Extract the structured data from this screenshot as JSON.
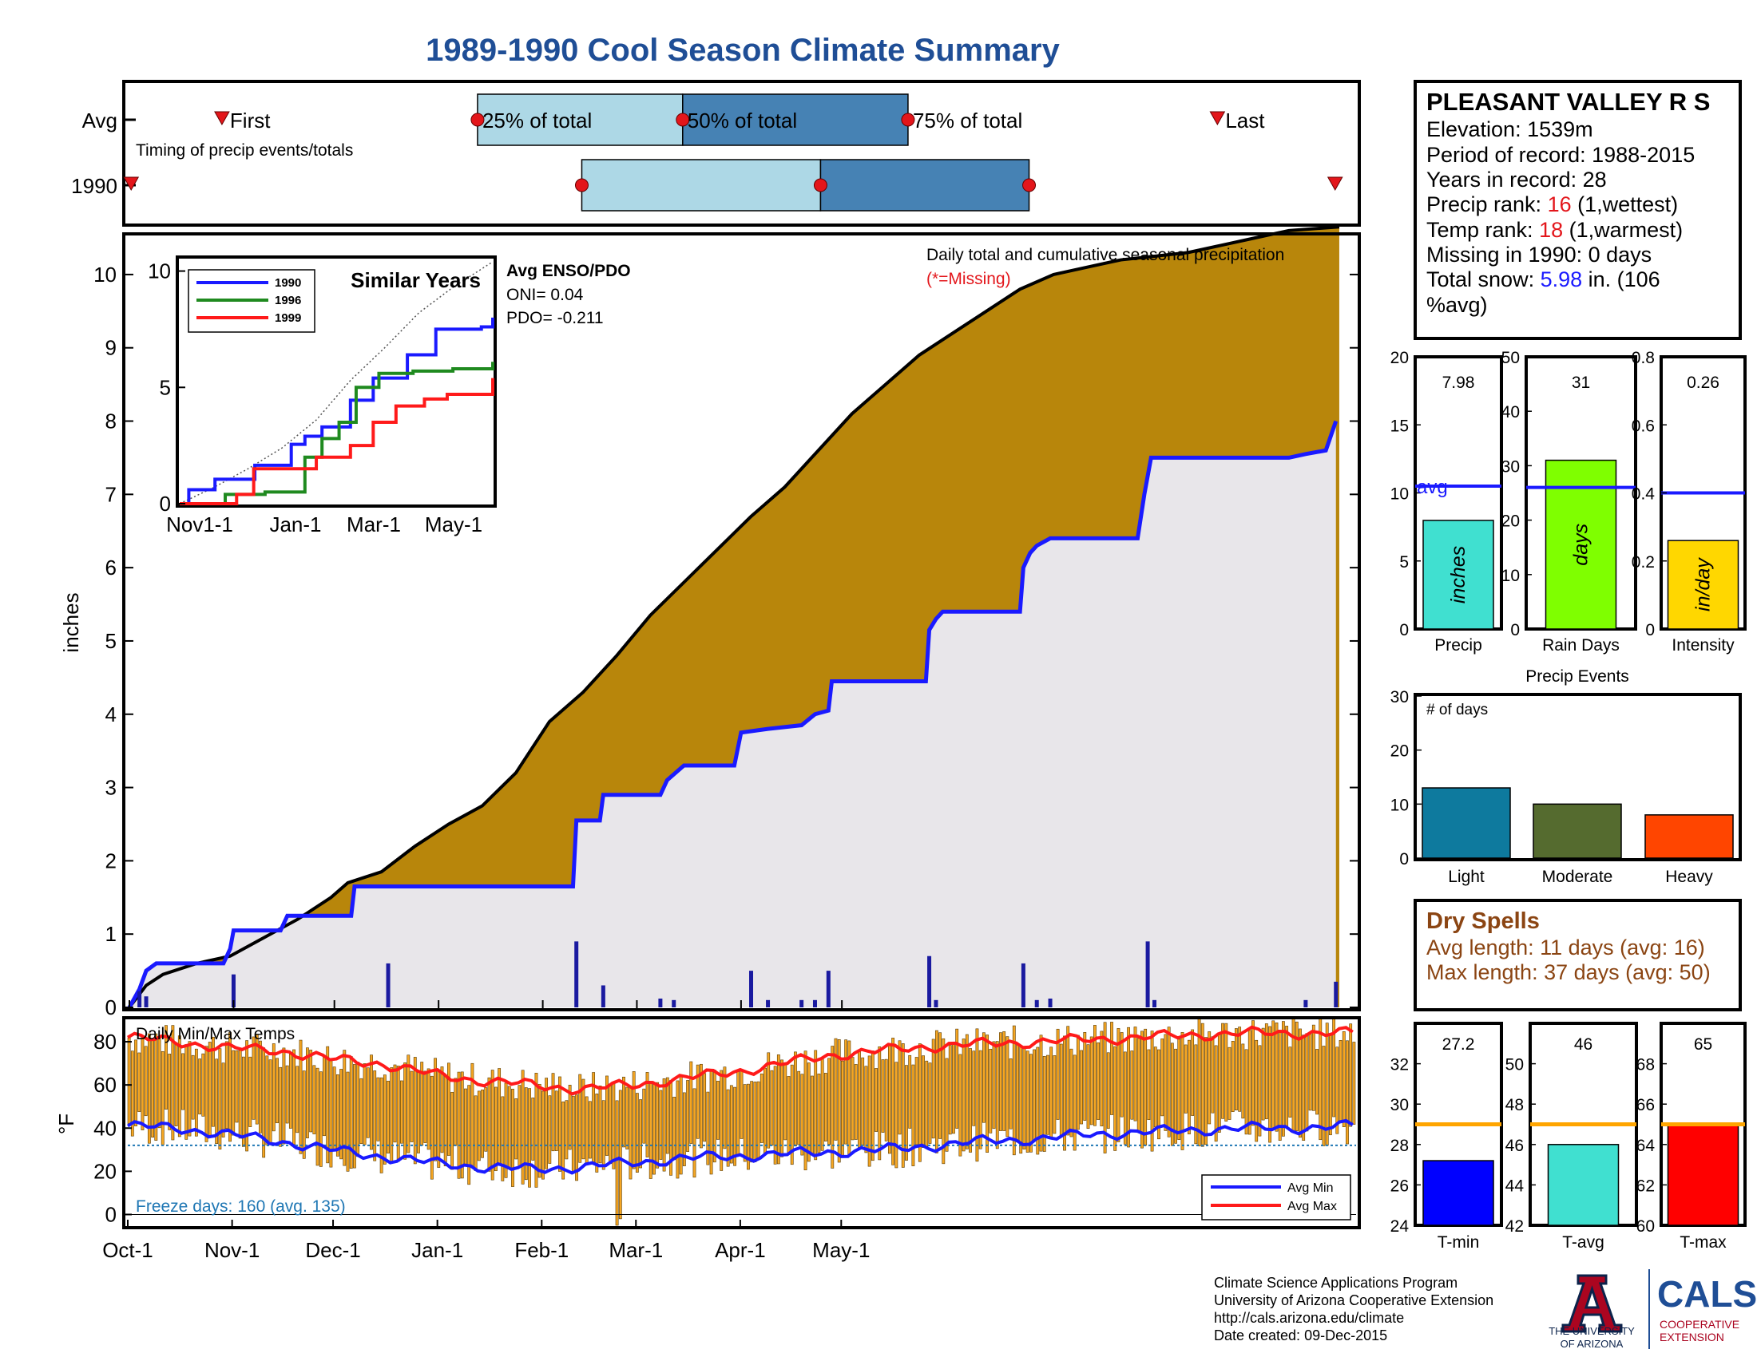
{
  "page_title": "1989-1990 Cool Season Climate Summary",
  "colors": {
    "title": "#1f4e96",
    "avg_cum_fill": "#b8860b",
    "deficit_fill": "#2e8b2e",
    "season_cum_fill": "#e8e6ea",
    "season_line": "#1a1aff",
    "daily_bar": "#1a1aa0",
    "temp_bar": "#f5a623",
    "avg_max": "#ff1a1a",
    "avg_min": "#1a1aff",
    "highlight_red": "#e3161b",
    "highlight_blue": "#1a1aff",
    "dry_spells": "#8b4513",
    "timing_light": "#add8e6",
    "timing_dark": "#4682b4"
  },
  "timing": {
    "row_labels": [
      "Avg",
      "1990"
    ],
    "first_label": "First",
    "last_label": "Last",
    "pct25_label": "25% of total",
    "pct50_label": "50% of total",
    "pct75_label": "75% of total",
    "caption": "Timing of precip events/totals",
    "avg": {
      "first": 28,
      "p25": 104,
      "p50": 165,
      "p75": 232,
      "last": 324
    },
    "season": {
      "first": 1,
      "p25": 135,
      "p50": 206,
      "p75": 268,
      "last": 359
    },
    "days_total": 365
  },
  "main_chart": {
    "ylabel": "inches",
    "annotation": "Daily total and cumulative seasonal precipitation",
    "missing_note": "(*=Missing)",
    "enso_title": "Avg ENSO/PDO",
    "oni": "ONI= 0.04",
    "pdo": "PDO= -0.211",
    "yticks": [
      0,
      1,
      2,
      3,
      4,
      5,
      6,
      7,
      8,
      9,
      10
    ],
    "ylim": [
      0,
      10.5
    ],
    "xticks": [
      "Oct-1",
      "Nov-1",
      "Dec-1",
      "Jan-1",
      "Feb-1",
      "Mar-1",
      "Apr-1",
      "May-1"
    ],
    "xtick_days": [
      0,
      31,
      61,
      92,
      123,
      151,
      182,
      212
    ],
    "avg_cumulative": [
      [
        0,
        0
      ],
      [
        5,
        0.3
      ],
      [
        10,
        0.45
      ],
      [
        20,
        0.6
      ],
      [
        30,
        0.7
      ],
      [
        40,
        0.95
      ],
      [
        50,
        1.2
      ],
      [
        60,
        1.5
      ],
      [
        65,
        1.7
      ],
      [
        75,
        1.85
      ],
      [
        85,
        2.2
      ],
      [
        95,
        2.5
      ],
      [
        105,
        2.75
      ],
      [
        115,
        3.2
      ],
      [
        125,
        3.9
      ],
      [
        135,
        4.3
      ],
      [
        145,
        4.8
      ],
      [
        155,
        5.35
      ],
      [
        165,
        5.8
      ],
      [
        175,
        6.25
      ],
      [
        185,
        6.7
      ],
      [
        195,
        7.1
      ],
      [
        205,
        7.6
      ],
      [
        215,
        8.1
      ],
      [
        225,
        8.5
      ],
      [
        235,
        8.9
      ],
      [
        245,
        9.2
      ],
      [
        255,
        9.5
      ],
      [
        265,
        9.8
      ],
      [
        275,
        10.0
      ],
      [
        285,
        10.1
      ],
      [
        295,
        10.2
      ],
      [
        305,
        10.25
      ],
      [
        315,
        10.3
      ],
      [
        325,
        10.4
      ],
      [
        335,
        10.5
      ],
      [
        345,
        10.6
      ],
      [
        360,
        10.65
      ]
    ],
    "season_cumulative": [
      [
        0,
        0
      ],
      [
        3,
        0.25
      ],
      [
        5,
        0.5
      ],
      [
        8,
        0.6
      ],
      [
        20,
        0.6
      ],
      [
        28,
        0.6
      ],
      [
        30,
        0.8
      ],
      [
        31,
        1.05
      ],
      [
        45,
        1.05
      ],
      [
        47,
        1.25
      ],
      [
        66,
        1.25
      ],
      [
        67,
        1.65
      ],
      [
        132,
        1.65
      ],
      [
        133,
        2.55
      ],
      [
        140,
        2.55
      ],
      [
        141,
        2.9
      ],
      [
        158,
        2.9
      ],
      [
        160,
        3.1
      ],
      [
        165,
        3.3
      ],
      [
        180,
        3.3
      ],
      [
        182,
        3.75
      ],
      [
        190,
        3.8
      ],
      [
        200,
        3.85
      ],
      [
        204,
        4.0
      ],
      [
        208,
        4.05
      ],
      [
        209,
        4.45
      ],
      [
        237,
        4.45
      ],
      [
        238,
        5.15
      ],
      [
        240,
        5.3
      ],
      [
        242,
        5.4
      ],
      [
        265,
        5.4
      ],
      [
        266,
        6.0
      ],
      [
        268,
        6.2
      ],
      [
        270,
        6.3
      ],
      [
        274,
        6.4
      ],
      [
        300,
        6.4
      ],
      [
        302,
        7.0
      ],
      [
        304,
        7.5
      ],
      [
        345,
        7.5
      ],
      [
        350,
        7.55
      ],
      [
        356,
        7.6
      ],
      [
        359,
        8.0
      ]
    ],
    "daily_bars": [
      [
        3,
        0.22
      ],
      [
        5,
        0.15
      ],
      [
        31,
        0.45
      ],
      [
        77,
        0.6
      ],
      [
        133,
        0.9
      ],
      [
        141,
        0.3
      ],
      [
        158,
        0.12
      ],
      [
        162,
        0.1
      ],
      [
        185,
        0.5
      ],
      [
        190,
        0.1
      ],
      [
        200,
        0.1
      ],
      [
        204,
        0.1
      ],
      [
        208,
        0.5
      ],
      [
        238,
        0.7
      ],
      [
        240,
        0.1
      ],
      [
        266,
        0.6
      ],
      [
        270,
        0.1
      ],
      [
        274,
        0.12
      ],
      [
        303,
        0.9
      ],
      [
        305,
        0.1
      ],
      [
        350,
        0.1
      ],
      [
        359,
        0.35
      ]
    ]
  },
  "inset": {
    "title": "Similar Years",
    "yticks": [
      0,
      5,
      10
    ],
    "ylim": [
      0,
      10.5
    ],
    "xticks": [
      "Nov1-1",
      "Jan-1",
      "Mar-1",
      "May-1"
    ],
    "xtick_days": [
      31,
      92,
      151,
      212
    ],
    "series": [
      {
        "name": "1990",
        "color": "#1a1aff",
        "points": [
          [
            0,
            0
          ],
          [
            8,
            0.6
          ],
          [
            31,
            1.05
          ],
          [
            66,
            1.65
          ],
          [
            92,
            1.65
          ],
          [
            98,
            2.55
          ],
          [
            110,
            2.9
          ],
          [
            125,
            3.3
          ],
          [
            150,
            4.45
          ],
          [
            170,
            5.4
          ],
          [
            190,
            5.4
          ],
          [
            200,
            6.4
          ],
          [
            225,
            7.5
          ],
          [
            265,
            7.6
          ],
          [
            275,
            8.0
          ]
        ]
      },
      {
        "name": "1996",
        "color": "#1f8a1f",
        "points": [
          [
            0,
            0
          ],
          [
            40,
            0.4
          ],
          [
            75,
            0.5
          ],
          [
            110,
            2.0
          ],
          [
            125,
            2.8
          ],
          [
            140,
            3.5
          ],
          [
            155,
            5.0
          ],
          [
            175,
            5.6
          ],
          [
            205,
            5.7
          ],
          [
            240,
            5.8
          ],
          [
            275,
            6.1
          ]
        ]
      },
      {
        "name": "1999",
        "color": "#ff1a1a",
        "points": [
          [
            0,
            0
          ],
          [
            50,
            0.4
          ],
          [
            65,
            1.5
          ],
          [
            105,
            1.5
          ],
          [
            120,
            2.0
          ],
          [
            150,
            2.5
          ],
          [
            170,
            3.5
          ],
          [
            190,
            4.2
          ],
          [
            215,
            4.5
          ],
          [
            235,
            4.7
          ],
          [
            275,
            5.4
          ]
        ]
      }
    ],
    "avg_dotted": [
      [
        0,
        0
      ],
      [
        30,
        0.7
      ],
      [
        60,
        1.5
      ],
      [
        90,
        2.4
      ],
      [
        120,
        3.6
      ],
      [
        150,
        5.3
      ],
      [
        180,
        6.7
      ],
      [
        210,
        8.2
      ],
      [
        240,
        9.3
      ],
      [
        275,
        10.4
      ]
    ]
  },
  "temp_chart": {
    "title": "Daily Min/Max Temps",
    "ylabel": "°F",
    "yticks": [
      0,
      20,
      40,
      60,
      80
    ],
    "ylim": [
      -5,
      90
    ],
    "freeze_label": "Freeze days: 160 (avg. 135)",
    "freeze_line": 32,
    "legend": [
      "Avg Min",
      "Avg Max"
    ],
    "avg_max": [
      [
        0,
        82
      ],
      [
        15,
        80
      ],
      [
        30,
        77
      ],
      [
        45,
        76
      ],
      [
        60,
        72
      ],
      [
        75,
        70
      ],
      [
        90,
        65
      ],
      [
        105,
        62
      ],
      [
        120,
        60
      ],
      [
        135,
        58
      ],
      [
        150,
        60
      ],
      [
        165,
        63
      ],
      [
        180,
        66
      ],
      [
        195,
        70
      ],
      [
        210,
        74
      ],
      [
        225,
        76
      ],
      [
        240,
        78
      ],
      [
        255,
        79
      ],
      [
        270,
        80
      ],
      [
        285,
        81
      ],
      [
        300,
        82
      ],
      [
        315,
        83
      ],
      [
        330,
        84
      ],
      [
        345,
        84
      ],
      [
        365,
        84
      ]
    ],
    "avg_min": [
      [
        0,
        41
      ],
      [
        15,
        40
      ],
      [
        30,
        37
      ],
      [
        45,
        34
      ],
      [
        60,
        30
      ],
      [
        75,
        27
      ],
      [
        90,
        24
      ],
      [
        105,
        22
      ],
      [
        120,
        21
      ],
      [
        135,
        22
      ],
      [
        150,
        24
      ],
      [
        165,
        26
      ],
      [
        180,
        27
      ],
      [
        195,
        28
      ],
      [
        210,
        29
      ],
      [
        225,
        30
      ],
      [
        240,
        32
      ],
      [
        255,
        34
      ],
      [
        270,
        35
      ],
      [
        285,
        37
      ],
      [
        300,
        38
      ],
      [
        315,
        39
      ],
      [
        330,
        40
      ],
      [
        345,
        40
      ],
      [
        365,
        41
      ]
    ]
  },
  "station": {
    "name": "PLEASANT VALLEY R S",
    "elevation": "Elevation: 1539m",
    "period": "Period of record: 1988-2015",
    "years": "Years in record: 28",
    "precip_rank_label": "Precip rank: ",
    "precip_rank_value": "16",
    "precip_rank_note": " (1,wettest)",
    "temp_rank_label": "Temp rank: ",
    "temp_rank_value": "18",
    "temp_rank_note": " (1,warmest)",
    "missing": "Missing in 1990: 0 days",
    "snow_label": "Total snow: ",
    "snow_value": "5.98",
    "snow_note": " in. (106",
    "snow_note2": "%avg)"
  },
  "small_bars": [
    {
      "label": "Precip",
      "unit": "inches",
      "value": 7.98,
      "value_text": "7.98",
      "avg": 10.5,
      "avg_text": "avg",
      "ymax": 20,
      "ticks": [
        0,
        5,
        10,
        15,
        20
      ],
      "color": "#40e0d0"
    },
    {
      "label": "Rain Days",
      "unit": "days",
      "value": 31,
      "value_text": "31",
      "avg": 26,
      "ymax": 50,
      "ticks": [
        0,
        10,
        20,
        30,
        40,
        50
      ],
      "color": "#7fff00"
    },
    {
      "label": "Intensity",
      "unit": "in/day",
      "value": 0.26,
      "value_text": "0.26",
      "avg": 0.4,
      "ymax": 0.8,
      "ticks": [
        0,
        0.2,
        0.4,
        0.6,
        0.8
      ],
      "color": "#ffd700"
    }
  ],
  "precip_events": {
    "title": "Precip Events",
    "subtitle": "# of days",
    "ymax": 30,
    "ticks": [
      0,
      10,
      20,
      30
    ],
    "bars": [
      {
        "label": "Light",
        "value": 13,
        "color": "#0e7a9e"
      },
      {
        "label": "Moderate",
        "value": 10,
        "color": "#556b2f"
      },
      {
        "label": "Heavy",
        "value": 8,
        "color": "#ff4500"
      }
    ]
  },
  "dry_spells": {
    "title": "Dry Spells",
    "avg_length": "Avg length: 11 days (avg: 16)",
    "max_length": "Max length: 37 days (avg: 50)"
  },
  "temp_bars": [
    {
      "label": "T-min",
      "value": 27.2,
      "value_text": "27.2",
      "avg": 29,
      "ymin": 24,
      "ymax": 34,
      "ticks": [
        24,
        26,
        28,
        30,
        32
      ],
      "color": "#0000ff"
    },
    {
      "label": "T-avg",
      "value": 46,
      "value_text": "46",
      "avg": 47,
      "ymin": 42,
      "ymax": 52,
      "ticks": [
        42,
        44,
        46,
        48,
        50
      ],
      "color": "#40e0d0"
    },
    {
      "label": "T-max",
      "value": 65,
      "value_text": "65",
      "avg": 65,
      "ymin": 60,
      "ymax": 70,
      "ticks": [
        60,
        62,
        64,
        66,
        68
      ],
      "color": "#ff0000"
    }
  ],
  "footer": {
    "line1": "Climate Science Applications Program",
    "line2": "University of Arizona Cooperative Extension",
    "line3": "http://cals.arizona.edu/climate",
    "line4": " Date created: 09-Dec-2015",
    "ua_name1": "THE UNIVERSITY",
    "ua_name2": "OF ARIZONA",
    "cals": "CALS",
    "coop1": "COOPERATIVE",
    "coop2": "EXTENSION"
  }
}
